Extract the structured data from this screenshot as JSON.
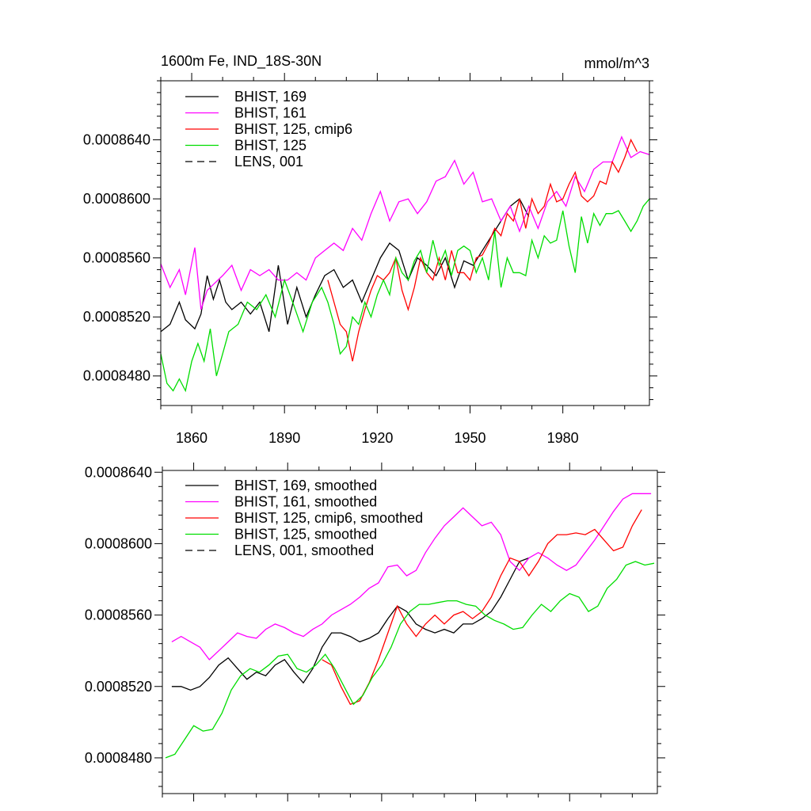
{
  "figure": {
    "title": "1600m Fe, IND_18S-30N",
    "units": "mmol/m^3"
  },
  "chart_data": [
    {
      "type": "line",
      "title": "1600m Fe, IND_18S-30N",
      "units": "mmol/m^3",
      "xlim": [
        1850,
        2008
      ],
      "ylim": [
        0.000846,
        0.000868
      ],
      "xticks": [
        1860,
        1890,
        1920,
        1950,
        1980
      ],
      "xtick_labels": [
        "1860",
        "1890",
        "1920",
        "1950",
        "1980"
      ],
      "yticks": [
        0.000848,
        0.000852,
        0.000856,
        0.00086,
        0.000864
      ],
      "ytick_labels": [
        "0.0008480",
        "0.0008520",
        "0.0008560",
        "0.0008600",
        "0.0008640"
      ],
      "legend_position": "top-left",
      "series": [
        {
          "name": "BHIST, 169",
          "color": "#000000",
          "dash": "solid",
          "x": [
            1850,
            1853,
            1856,
            1858,
            1861,
            1863,
            1865,
            1867,
            1869,
            1871,
            1873,
            1876,
            1879,
            1882,
            1885,
            1888,
            1891,
            1894,
            1897,
            1900,
            1903,
            1906,
            1909,
            1912,
            1915,
            1918,
            1921,
            1924,
            1927,
            1930,
            1933,
            1936,
            1939,
            1942,
            1945,
            1948,
            1951,
            1954,
            1957,
            1960,
            1963,
            1966,
            1969
          ],
          "values": [
            0.000851,
            0.0008515,
            0.000853,
            0.0008518,
            0.0008512,
            0.0008522,
            0.0008548,
            0.0008532,
            0.0008545,
            0.000853,
            0.0008525,
            0.000853,
            0.0008522,
            0.000853,
            0.000851,
            0.0008555,
            0.0008515,
            0.000854,
            0.000852,
            0.0008535,
            0.0008548,
            0.0008552,
            0.000854,
            0.0008545,
            0.000853,
            0.0008545,
            0.000856,
            0.000857,
            0.0008565,
            0.0008545,
            0.000856,
            0.0008555,
            0.0008548,
            0.000856,
            0.000854,
            0.0008558,
            0.0008555,
            0.0008565,
            0.0008575,
            0.0008585,
            0.0008595,
            0.00086,
            0.0008588
          ]
        },
        {
          "name": "BHIST, 161",
          "color": "#ff00ff",
          "dash": "solid",
          "x": [
            1850,
            1853,
            1856,
            1858,
            1861,
            1863,
            1865,
            1867,
            1870,
            1873,
            1876,
            1879,
            1882,
            1885,
            1888,
            1891,
            1894,
            1897,
            1900,
            1903,
            1906,
            1909,
            1912,
            1915,
            1918,
            1921,
            1924,
            1927,
            1930,
            1933,
            1936,
            1939,
            1942,
            1945,
            1948,
            1951,
            1954,
            1957,
            1960,
            1963,
            1966,
            1969,
            1972,
            1975,
            1978,
            1981,
            1984,
            1987,
            1990,
            1993,
            1996,
            1999,
            2002,
            2005,
            2008
          ],
          "values": [
            0.0008556,
            0.000854,
            0.0008552,
            0.0008535,
            0.0008567,
            0.0008525,
            0.0008538,
            0.0008542,
            0.0008548,
            0.0008555,
            0.0008538,
            0.0008552,
            0.0008548,
            0.0008552,
            0.0008545,
            0.0008545,
            0.000855,
            0.0008545,
            0.000856,
            0.0008565,
            0.000857,
            0.0008565,
            0.000858,
            0.0008572,
            0.000859,
            0.0008605,
            0.0008585,
            0.0008598,
            0.00086,
            0.000859,
            0.0008598,
            0.0008612,
            0.0008615,
            0.0008626,
            0.000861,
            0.0008618,
            0.0008598,
            0.00086,
            0.0008585,
            0.0008595,
            0.0008578,
            0.0008595,
            0.000858,
            0.0008598,
            0.0008605,
            0.0008595,
            0.0008615,
            0.0008605,
            0.000862,
            0.0008625,
            0.0008625,
            0.0008642,
            0.0008628,
            0.0008632,
            0.000863
          ]
        },
        {
          "name": "BHIST, 125, cmip6",
          "color": "#ff0000",
          "dash": "solid",
          "x": [
            1904,
            1906,
            1908,
            1910,
            1912,
            1914,
            1916,
            1918,
            1920,
            1922,
            1924,
            1926,
            1928,
            1930,
            1932,
            1934,
            1936,
            1938,
            1940,
            1942,
            1944,
            1946,
            1948,
            1950,
            1952,
            1954,
            1956,
            1958,
            1960,
            1962,
            1964,
            1966,
            1968,
            1970,
            1972,
            1974,
            1976,
            1978,
            1980,
            1982,
            1984,
            1986,
            1988,
            1990,
            1992,
            1994,
            1996,
            1998,
            2000,
            2002,
            2004
          ],
          "values": [
            0.0008545,
            0.000853,
            0.0008515,
            0.000851,
            0.000849,
            0.000851,
            0.0008525,
            0.0008538,
            0.0008548,
            0.0008545,
            0.000855,
            0.000856,
            0.0008538,
            0.0008525,
            0.000854,
            0.000856,
            0.000855,
            0.0008545,
            0.000856,
            0.0008545,
            0.0008565,
            0.000855,
            0.000855,
            0.0008545,
            0.000856,
            0.0008562,
            0.000857,
            0.000858,
            0.0008575,
            0.000859,
            0.0008585,
            0.00086,
            0.000858,
            0.00086,
            0.000859,
            0.0008595,
            0.000861,
            0.0008598,
            0.00086,
            0.000861,
            0.0008618,
            0.0008602,
            0.0008598,
            0.0008602,
            0.0008612,
            0.000861,
            0.0008625,
            0.0008618,
            0.0008628,
            0.000864,
            0.0008632
          ]
        },
        {
          "name": "BHIST, 125",
          "color": "#00dd00",
          "dash": "solid",
          "x": [
            1850,
            1852,
            1854,
            1856,
            1858,
            1860,
            1862,
            1864,
            1866,
            1868,
            1870,
            1872,
            1875,
            1878,
            1881,
            1884,
            1887,
            1890,
            1893,
            1896,
            1899,
            1902,
            1904,
            1906,
            1908,
            1910,
            1912,
            1914,
            1916,
            1918,
            1920,
            1922,
            1924,
            1926,
            1928,
            1930,
            1932,
            1934,
            1936,
            1938,
            1940,
            1942,
            1944,
            1946,
            1948,
            1950,
            1952,
            1954,
            1956,
            1958,
            1960,
            1962,
            1964,
            1966,
            1968,
            1970,
            1972,
            1974,
            1976,
            1978,
            1980,
            1982,
            1984,
            1986,
            1988,
            1990,
            1992,
            1994,
            1996,
            1998,
            2000,
            2002,
            2004,
            2006,
            2008
          ],
          "values": [
            0.0008495,
            0.0008475,
            0.000847,
            0.0008478,
            0.000847,
            0.000849,
            0.0008502,
            0.000849,
            0.0008512,
            0.000848,
            0.0008495,
            0.000851,
            0.0008515,
            0.000853,
            0.0008525,
            0.0008535,
            0.000852,
            0.0008545,
            0.0008528,
            0.000851,
            0.000853,
            0.000854,
            0.000853,
            0.0008515,
            0.0008495,
            0.00085,
            0.000852,
            0.0008515,
            0.000853,
            0.000852,
            0.0008535,
            0.0008545,
            0.0008535,
            0.000856,
            0.000855,
            0.0008545,
            0.0008558,
            0.0008565,
            0.000855,
            0.0008572,
            0.0008555,
            0.0008565,
            0.0008548,
            0.0008565,
            0.0008568,
            0.0008565,
            0.000855,
            0.000856,
            0.0008545,
            0.0008578,
            0.000854,
            0.000856,
            0.000855,
            0.000855,
            0.0008548,
            0.0008572,
            0.000856,
            0.0008575,
            0.000857,
            0.0008572,
            0.0008592,
            0.0008568,
            0.000855,
            0.0008588,
            0.000857,
            0.000859,
            0.0008582,
            0.000859,
            0.000859,
            0.0008592,
            0.0008585,
            0.0008578,
            0.0008585,
            0.0008595,
            0.00086
          ]
        },
        {
          "name": "LENS, 001",
          "color": "#000000",
          "dash": "dashed",
          "x": [],
          "values": []
        }
      ]
    },
    {
      "type": "line",
      "xlim": [
        1850,
        2008
      ],
      "ylim": [
        0.000846,
        0.0008641
      ],
      "xticks": [
        1860,
        1890,
        1920,
        1950,
        1980
      ],
      "yticks": [
        0.000848,
        0.000852,
        0.000856,
        0.00086,
        0.000864
      ],
      "ytick_labels": [
        "0.0008480",
        "0.0008520",
        "0.0008560",
        "0.0008600",
        "0.0008640"
      ],
      "legend_position": "top-left",
      "series": [
        {
          "name": "BHIST, 169, smoothed",
          "color": "#000000",
          "dash": "solid",
          "x": [
            1853,
            1856,
            1859,
            1862,
            1865,
            1868,
            1871,
            1874,
            1877,
            1880,
            1883,
            1886,
            1889,
            1892,
            1895,
            1898,
            1901,
            1904,
            1907,
            1910,
            1913,
            1916,
            1919,
            1922,
            1925,
            1928,
            1931,
            1934,
            1937,
            1940,
            1943,
            1946,
            1949,
            1952,
            1955,
            1958,
            1961,
            1964,
            1967
          ],
          "values": [
            0.000852,
            0.000852,
            0.0008518,
            0.000852,
            0.0008525,
            0.0008532,
            0.0008536,
            0.000853,
            0.0008524,
            0.0008528,
            0.0008526,
            0.0008532,
            0.0008535,
            0.0008528,
            0.0008522,
            0.000853,
            0.0008542,
            0.000855,
            0.000855,
            0.0008548,
            0.0008545,
            0.0008547,
            0.000855,
            0.0008558,
            0.0008565,
            0.0008562,
            0.0008555,
            0.0008552,
            0.000855,
            0.0008552,
            0.000855,
            0.0008555,
            0.0008555,
            0.0008558,
            0.0008562,
            0.000857,
            0.000858,
            0.000859,
            0.0008592
          ]
        },
        {
          "name": "BHIST, 161, smoothed",
          "color": "#ff00ff",
          "dash": "solid",
          "x": [
            1853,
            1856,
            1859,
            1862,
            1865,
            1868,
            1871,
            1874,
            1877,
            1880,
            1883,
            1886,
            1889,
            1892,
            1895,
            1898,
            1901,
            1904,
            1907,
            1910,
            1913,
            1916,
            1919,
            1922,
            1925,
            1928,
            1931,
            1934,
            1937,
            1940,
            1943,
            1946,
            1949,
            1952,
            1955,
            1958,
            1961,
            1964,
            1967,
            1970,
            1973,
            1976,
            1979,
            1982,
            1985,
            1988,
            1991,
            1994,
            1997,
            2000,
            2003,
            2006
          ],
          "values": [
            0.0008545,
            0.0008548,
            0.0008545,
            0.0008542,
            0.0008535,
            0.000854,
            0.0008545,
            0.000855,
            0.0008548,
            0.0008547,
            0.0008552,
            0.0008555,
            0.0008553,
            0.000855,
            0.0008548,
            0.0008552,
            0.0008555,
            0.000856,
            0.0008563,
            0.0008566,
            0.000857,
            0.0008575,
            0.0008578,
            0.0008587,
            0.0008588,
            0.0008582,
            0.0008585,
            0.0008595,
            0.0008603,
            0.000861,
            0.0008615,
            0.000862,
            0.0008615,
            0.000861,
            0.0008612,
            0.0008605,
            0.000859,
            0.0008585,
            0.0008592,
            0.0008595,
            0.0008592,
            0.0008588,
            0.0008585,
            0.0008588,
            0.0008595,
            0.0008602,
            0.000861,
            0.0008618,
            0.0008625,
            0.0008628,
            0.0008628,
            0.0008628
          ]
        },
        {
          "name": "BHIST, 125, cmip6, smoothed",
          "color": "#ff0000",
          "dash": "solid",
          "x": [
            1901,
            1904,
            1907,
            1910,
            1913,
            1916,
            1919,
            1922,
            1925,
            1928,
            1931,
            1934,
            1937,
            1940,
            1943,
            1946,
            1949,
            1952,
            1955,
            1958,
            1961,
            1964,
            1967,
            1970,
            1973,
            1976,
            1979,
            1982,
            1985,
            1988,
            1991,
            1994,
            1997,
            2000,
            2003
          ],
          "values": [
            0.0008535,
            0.0008532,
            0.000852,
            0.000851,
            0.0008512,
            0.0008522,
            0.0008535,
            0.000855,
            0.0008565,
            0.0008555,
            0.0008548,
            0.0008555,
            0.000856,
            0.0008555,
            0.000856,
            0.0008562,
            0.0008558,
            0.0008562,
            0.000857,
            0.0008582,
            0.0008592,
            0.000859,
            0.0008582,
            0.000859,
            0.00086,
            0.0008605,
            0.0008605,
            0.0008606,
            0.0008605,
            0.0008608,
            0.0008602,
            0.0008596,
            0.0008598,
            0.000861,
            0.0008619
          ]
        },
        {
          "name": "BHIST, 125, smoothed",
          "color": "#00dd00",
          "dash": "solid",
          "x": [
            1851,
            1854,
            1857,
            1860,
            1863,
            1866,
            1869,
            1872,
            1875,
            1878,
            1881,
            1884,
            1887,
            1890,
            1893,
            1896,
            1899,
            1902,
            1905,
            1908,
            1911,
            1914,
            1917,
            1920,
            1923,
            1926,
            1929,
            1932,
            1935,
            1938,
            1941,
            1944,
            1947,
            1950,
            1953,
            1956,
            1959,
            1962,
            1965,
            1968,
            1971,
            1974,
            1977,
            1980,
            1983,
            1986,
            1989,
            1992,
            1995,
            1998,
            2001,
            2004,
            2007
          ],
          "values": [
            0.000848,
            0.0008482,
            0.000849,
            0.0008498,
            0.0008495,
            0.0008496,
            0.0008505,
            0.0008518,
            0.0008526,
            0.000853,
            0.0008528,
            0.0008532,
            0.0008537,
            0.0008538,
            0.000853,
            0.0008528,
            0.0008532,
            0.0008538,
            0.000853,
            0.000852,
            0.000851,
            0.0008515,
            0.0008525,
            0.0008532,
            0.0008542,
            0.0008555,
            0.0008562,
            0.0008566,
            0.0008566,
            0.0008567,
            0.0008568,
            0.0008568,
            0.0008566,
            0.0008565,
            0.000856,
            0.0008557,
            0.0008555,
            0.0008552,
            0.0008553,
            0.000856,
            0.0008566,
            0.0008562,
            0.0008568,
            0.0008572,
            0.000857,
            0.0008562,
            0.0008565,
            0.0008575,
            0.000858,
            0.0008588,
            0.000859,
            0.0008588,
            0.0008589
          ]
        },
        {
          "name": "LENS, 001, smoothed",
          "color": "#000000",
          "dash": "dashed",
          "x": [],
          "values": []
        }
      ]
    }
  ]
}
